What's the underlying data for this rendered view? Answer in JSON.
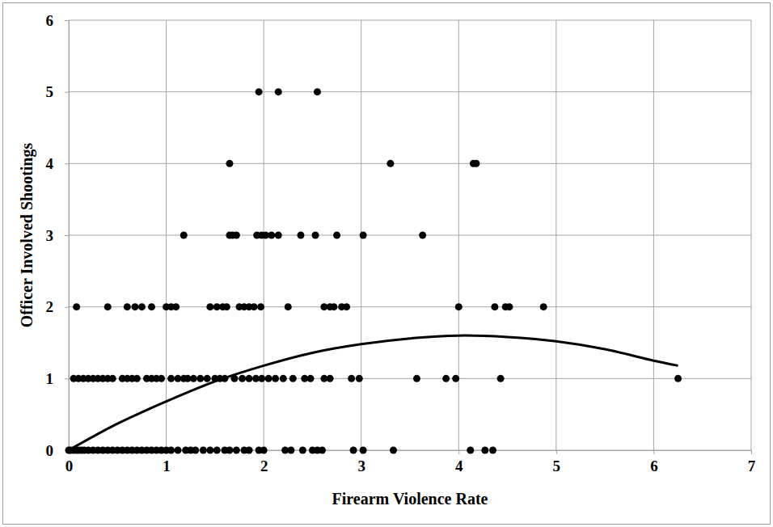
{
  "chart_data": {
    "type": "scatter",
    "x_label": "Firearm Violence Rate",
    "y_label": "Officer Involved Shootings",
    "xlim": [
      0,
      7
    ],
    "xticks": [
      0,
      1,
      2,
      3,
      4,
      5,
      6,
      7
    ],
    "ylim": [
      0,
      6
    ],
    "yticks": [
      0,
      1,
      2,
      3,
      4,
      5,
      6
    ],
    "grid": true,
    "series": [
      {
        "type": "scatter",
        "color": "#000000",
        "marker": "circle",
        "x": [
          1.95,
          2.15,
          2.55,
          1.65,
          3.3,
          4.15,
          4.18,
          1.18,
          1.65,
          1.68,
          1.72,
          1.93,
          1.98,
          2.02,
          2.08,
          2.15,
          2.38,
          2.53,
          2.75,
          3.02,
          3.63,
          0.08,
          0.4,
          0.6,
          0.68,
          0.75,
          0.85,
          1.0,
          1.05,
          1.1,
          1.45,
          1.52,
          1.58,
          1.62,
          1.75,
          1.8,
          1.85,
          1.9,
          1.97,
          2.25,
          2.62,
          2.68,
          2.72,
          2.8,
          2.85,
          4.0,
          4.37,
          4.48,
          4.52,
          4.87,
          0.05,
          0.1,
          0.15,
          0.2,
          0.25,
          0.3,
          0.35,
          0.4,
          0.45,
          0.55,
          0.6,
          0.65,
          0.7,
          0.8,
          0.85,
          0.9,
          0.95,
          1.05,
          1.12,
          1.18,
          1.22,
          1.28,
          1.35,
          1.42,
          1.5,
          1.55,
          1.6,
          1.7,
          1.78,
          1.85,
          1.92,
          1.98,
          2.05,
          2.12,
          2.2,
          2.3,
          2.42,
          2.48,
          2.62,
          2.68,
          2.9,
          2.98,
          3.57,
          3.87,
          3.97,
          4.43,
          6.25,
          0.0,
          0.02,
          0.05,
          0.08,
          0.1,
          0.13,
          0.16,
          0.2,
          0.25,
          0.3,
          0.35,
          0.4,
          0.45,
          0.5,
          0.55,
          0.6,
          0.65,
          0.7,
          0.75,
          0.8,
          0.85,
          0.9,
          0.95,
          1.0,
          1.05,
          1.12,
          1.2,
          1.25,
          1.3,
          1.38,
          1.45,
          1.52,
          1.6,
          1.65,
          1.72,
          1.8,
          1.85,
          1.95,
          2.0,
          2.22,
          2.28,
          2.4,
          2.5,
          2.55,
          2.6,
          2.92,
          3.02,
          3.33,
          4.12,
          4.27,
          4.35
        ],
        "values": [
          5,
          5,
          5,
          4,
          4,
          4,
          4,
          3,
          3,
          3,
          3,
          3,
          3,
          3,
          3,
          3,
          3,
          3,
          3,
          3,
          3,
          2,
          2,
          2,
          2,
          2,
          2,
          2,
          2,
          2,
          2,
          2,
          2,
          2,
          2,
          2,
          2,
          2,
          2,
          2,
          2,
          2,
          2,
          2,
          2,
          2,
          2,
          2,
          2,
          2,
          1,
          1,
          1,
          1,
          1,
          1,
          1,
          1,
          1,
          1,
          1,
          1,
          1,
          1,
          1,
          1,
          1,
          1,
          1,
          1,
          1,
          1,
          1,
          1,
          1,
          1,
          1,
          1,
          1,
          1,
          1,
          1,
          1,
          1,
          1,
          1,
          1,
          1,
          1,
          1,
          1,
          1,
          1,
          1,
          1,
          1,
          1,
          0,
          0,
          0,
          0,
          0,
          0,
          0,
          0,
          0,
          0,
          0,
          0,
          0,
          0,
          0,
          0,
          0,
          0,
          0,
          0,
          0,
          0,
          0,
          0,
          0,
          0,
          0,
          0,
          0,
          0,
          0,
          0,
          0,
          0,
          0,
          0,
          0,
          0,
          0,
          0,
          0,
          0,
          0,
          0,
          0,
          0,
          0,
          0,
          0,
          0,
          0
        ]
      },
      {
        "type": "line",
        "color": "#000000",
        "line_style": "solid",
        "x": [
          0,
          0.5,
          1,
          1.5,
          2,
          2.5,
          3,
          3.5,
          4,
          4.5,
          5,
          5.5,
          6,
          6.25
        ],
        "values": [
          0,
          0.37,
          0.68,
          0.96,
          1.18,
          1.36,
          1.48,
          1.56,
          1.6,
          1.58,
          1.52,
          1.41,
          1.25,
          1.18
        ]
      }
    ]
  }
}
